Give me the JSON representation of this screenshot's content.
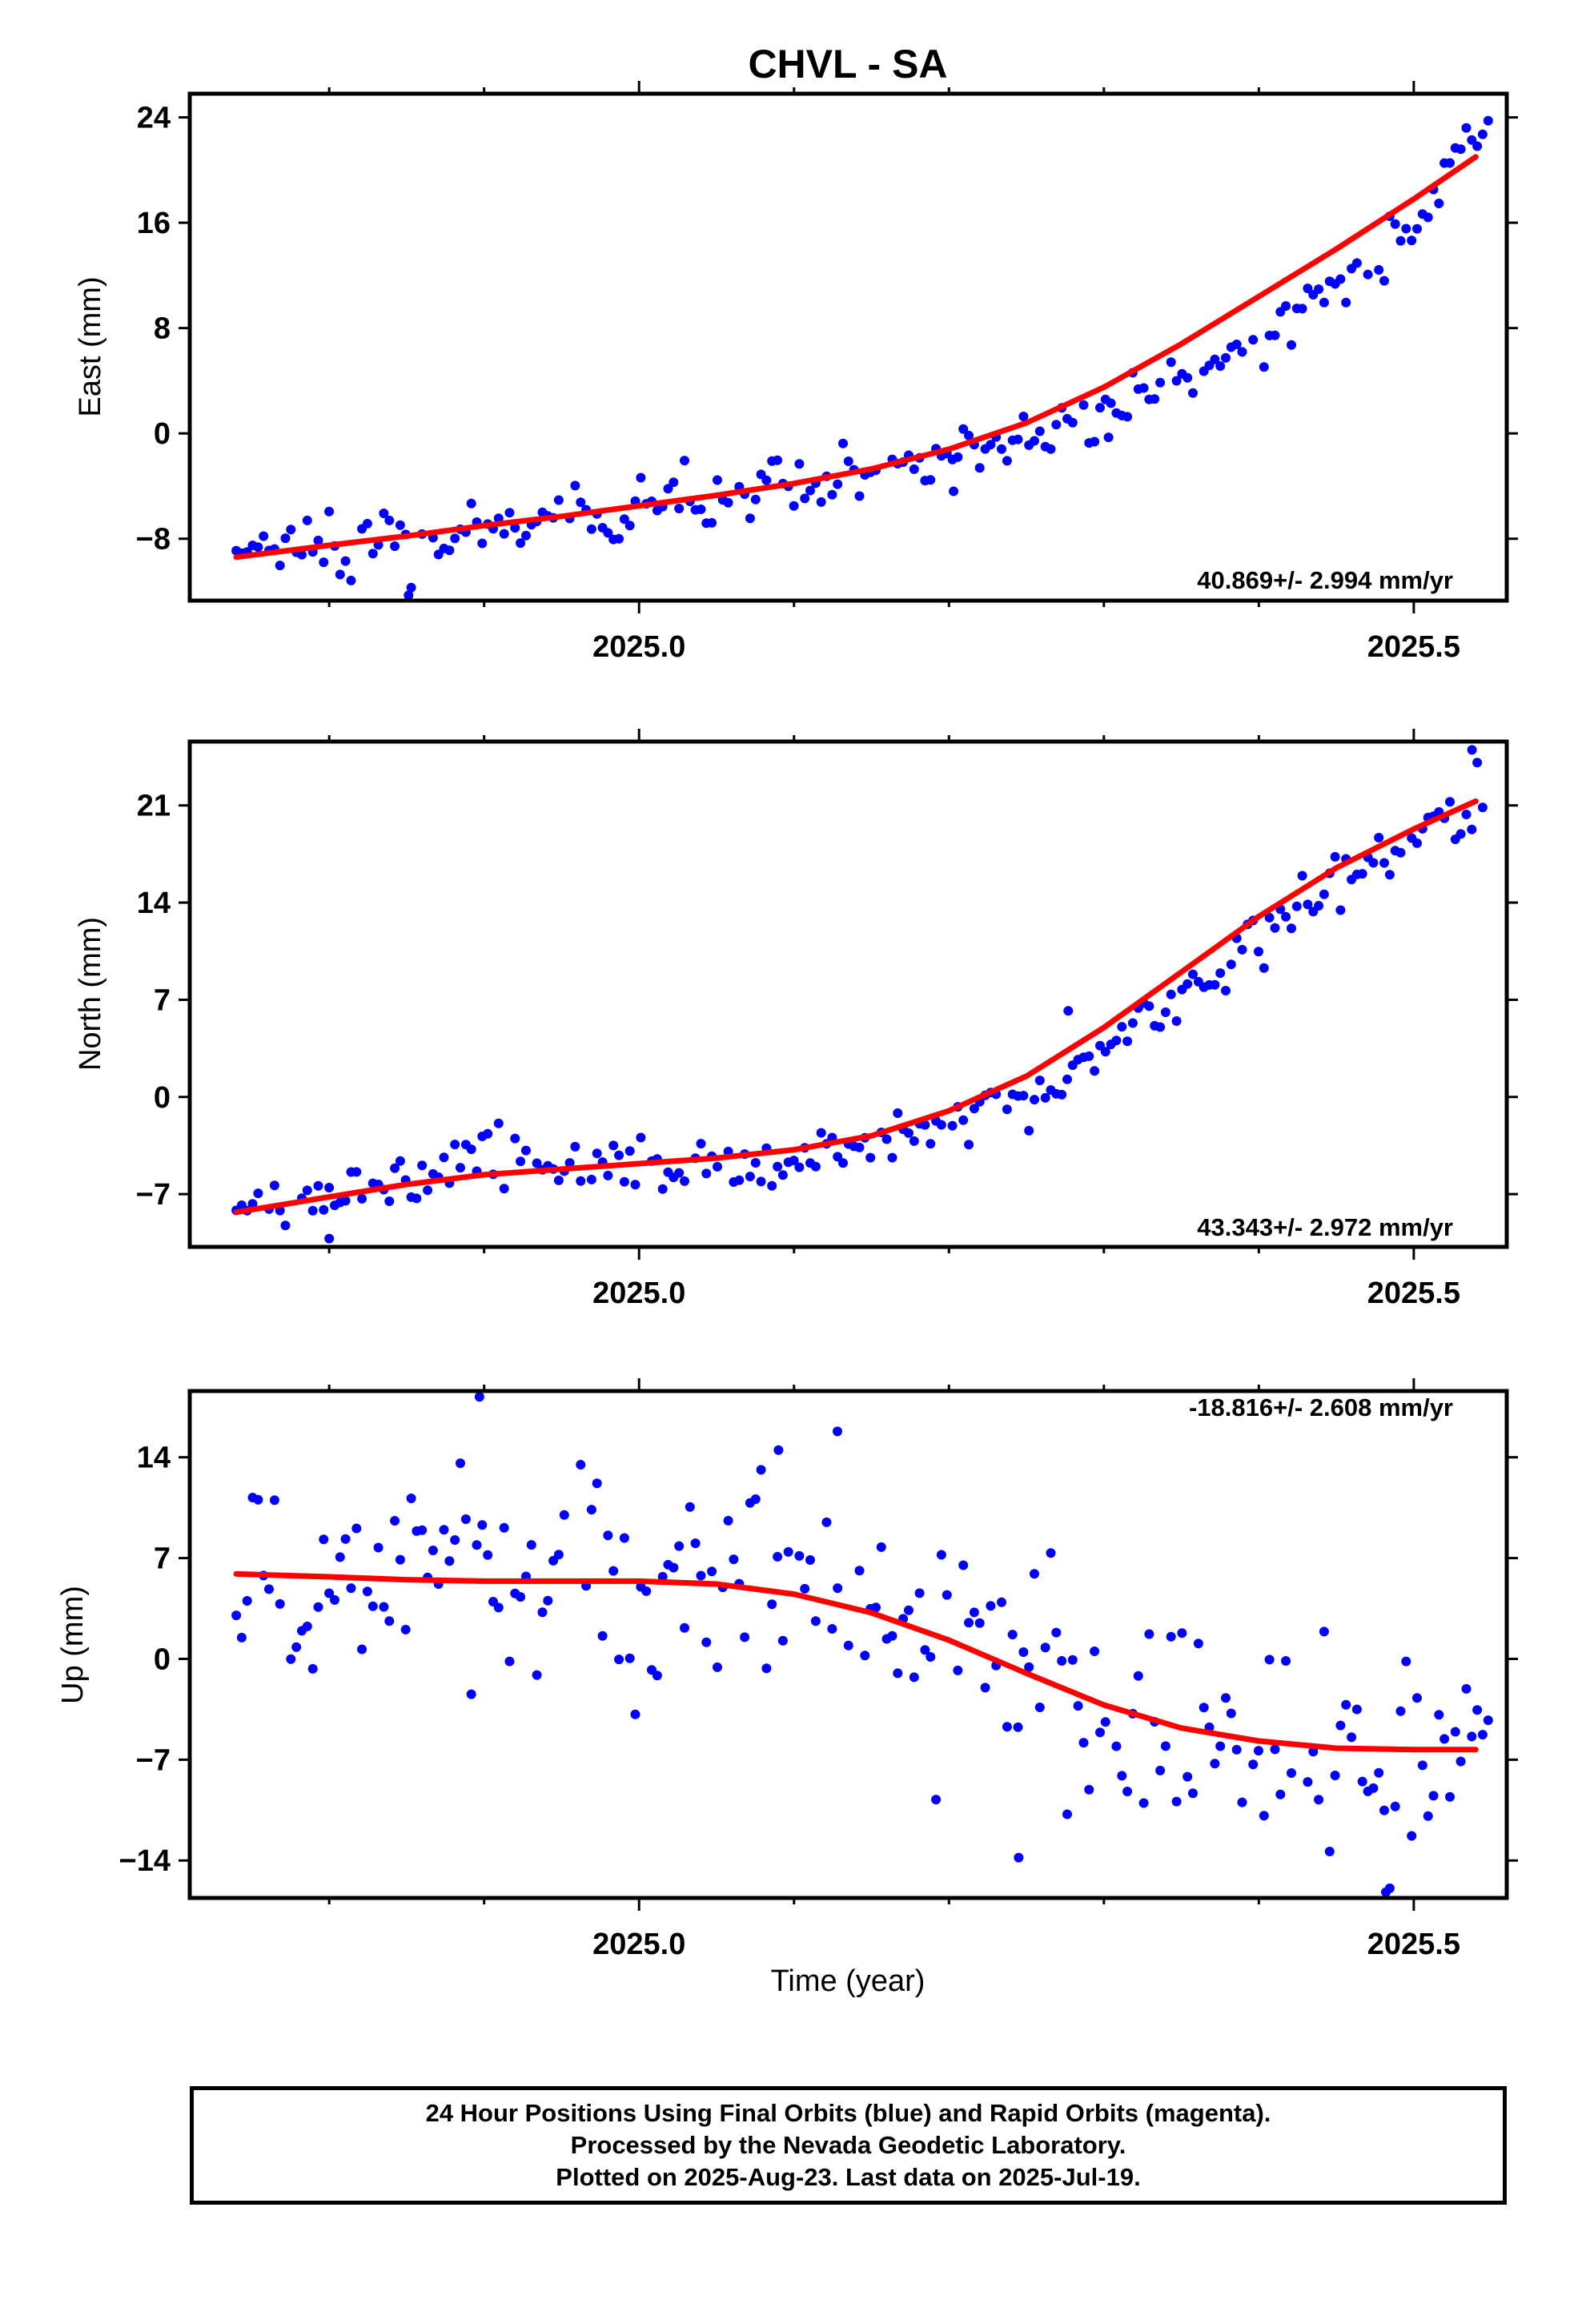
{
  "title": "CHVL - SA",
  "colors": {
    "points": "#0000ff",
    "fit": "#ff0000",
    "axis": "#000000"
  },
  "chart_data": [
    {
      "type": "scatter",
      "panel": "east",
      "ylabel": "East (mm)",
      "xlabel": "",
      "xlim": [
        2024.71,
        2025.56
      ],
      "ylim": [
        -12.7,
        25.8
      ],
      "yticks": [
        24,
        16,
        8,
        0,
        -8
      ],
      "xticks": [
        2025.0,
        2025.5
      ],
      "rate_label": "40.869+/- 2.994 mm/yr",
      "rate_position": "bottom-right",
      "point_series": {
        "name": "Final Orbits",
        "color": "#0000ff",
        "anchors": [
          [
            2024.74,
            -8.9
          ],
          [
            2024.8,
            -8.3
          ],
          [
            2024.85,
            -7.8
          ],
          [
            2024.9,
            -7.3
          ],
          [
            2024.95,
            -6.8
          ],
          [
            2025.0,
            -6.0
          ],
          [
            2025.05,
            -5.2
          ],
          [
            2025.1,
            -4.4
          ],
          [
            2025.15,
            -3.3
          ],
          [
            2025.2,
            -1.8
          ],
          [
            2025.25,
            -0.3
          ],
          [
            2025.3,
            1.5
          ],
          [
            2025.35,
            4.0
          ],
          [
            2025.4,
            7.3
          ],
          [
            2025.45,
            11.8
          ],
          [
            2025.5,
            15.5
          ],
          [
            2025.55,
            24.0
          ]
        ],
        "noise": 1.2,
        "outliers": [
          [
            2024.8512,
            -12.3
          ],
          [
            2025.303,
            -0.3
          ],
          [
            2025.203,
            -4.4
          ]
        ]
      },
      "fit": {
        "name": "fit",
        "color": "#ff0000",
        "points": [
          [
            2024.74,
            -9.4
          ],
          [
            2024.8,
            -8.5
          ],
          [
            2024.85,
            -7.8
          ],
          [
            2024.9,
            -7.0
          ],
          [
            2024.95,
            -6.3
          ],
          [
            2025.0,
            -5.5
          ],
          [
            2025.05,
            -4.7
          ],
          [
            2025.1,
            -3.8
          ],
          [
            2025.15,
            -2.7
          ],
          [
            2025.2,
            -1.2
          ],
          [
            2025.25,
            0.8
          ],
          [
            2025.3,
            3.5
          ],
          [
            2025.35,
            6.8
          ],
          [
            2025.4,
            10.4
          ],
          [
            2025.45,
            14.0
          ],
          [
            2025.5,
            17.8
          ],
          [
            2025.54,
            21.0
          ]
        ]
      }
    },
    {
      "type": "scatter",
      "panel": "north",
      "ylabel": "North (mm)",
      "xlabel": "",
      "xlim": [
        2024.71,
        2025.56
      ],
      "ylim": [
        -10.8,
        25.6
      ],
      "yticks": [
        21,
        14,
        7,
        0,
        -7
      ],
      "xticks": [
        2025.0,
        2025.5
      ],
      "rate_label": "43.343+/- 2.972 mm/yr",
      "rate_position": "bottom-right",
      "point_series": {
        "name": "Final Orbits",
        "color": "#0000ff",
        "anchors": [
          [
            2024.74,
            -8.0
          ],
          [
            2024.8,
            -7.0
          ],
          [
            2024.85,
            -5.2
          ],
          [
            2024.9,
            -4.5
          ],
          [
            2024.95,
            -5.0
          ],
          [
            2025.0,
            -5.2
          ],
          [
            2025.05,
            -5.0
          ],
          [
            2025.1,
            -4.7
          ],
          [
            2025.15,
            -3.2
          ],
          [
            2025.2,
            -1.8
          ],
          [
            2025.25,
            0.0
          ],
          [
            2025.3,
            3.0
          ],
          [
            2025.35,
            7.5
          ],
          [
            2025.4,
            11.8
          ],
          [
            2025.45,
            15.8
          ],
          [
            2025.5,
            18.5
          ],
          [
            2025.55,
            22.0
          ]
        ],
        "noise": 1.1,
        "outliers": [
          [
            2024.8,
            -10.2
          ],
          [
            2025.5376,
            25.0
          ],
          [
            2025.277,
            6.2
          ]
        ]
      },
      "fit": {
        "name": "fit",
        "color": "#ff0000",
        "points": [
          [
            2024.74,
            -8.3
          ],
          [
            2024.8,
            -7.2
          ],
          [
            2024.85,
            -6.3
          ],
          [
            2024.9,
            -5.6
          ],
          [
            2024.95,
            -5.2
          ],
          [
            2025.0,
            -4.8
          ],
          [
            2025.05,
            -4.4
          ],
          [
            2025.1,
            -3.8
          ],
          [
            2025.15,
            -2.8
          ],
          [
            2025.2,
            -1.0
          ],
          [
            2025.25,
            1.5
          ],
          [
            2025.3,
            5.0
          ],
          [
            2025.35,
            9.0
          ],
          [
            2025.4,
            13.0
          ],
          [
            2025.45,
            16.5
          ],
          [
            2025.5,
            19.3
          ],
          [
            2025.54,
            21.3
          ]
        ]
      }
    },
    {
      "type": "scatter",
      "panel": "up",
      "ylabel": "Up (mm)",
      "xlabel": "Time (year)",
      "xlim": [
        2024.71,
        2025.56
      ],
      "ylim": [
        -16.6,
        18.6
      ],
      "yticks": [
        14,
        7,
        0,
        -7,
        -14
      ],
      "xticks": [
        2025.0,
        2025.5
      ],
      "rate_label": "-18.816+/- 2.608 mm/yr",
      "rate_position": "top-right",
      "point_series": {
        "name": "Final Orbits",
        "color": "#0000ff",
        "anchors": [
          [
            2024.74,
            5.5
          ],
          [
            2024.8,
            6.0
          ],
          [
            2024.85,
            6.5
          ],
          [
            2024.9,
            5.0
          ],
          [
            2024.95,
            4.5
          ],
          [
            2025.0,
            5.0
          ],
          [
            2025.05,
            5.5
          ],
          [
            2025.1,
            6.5
          ],
          [
            2025.15,
            3.0
          ],
          [
            2025.2,
            1.5
          ],
          [
            2025.25,
            -0.5
          ],
          [
            2025.3,
            -3.5
          ],
          [
            2025.35,
            -5.0
          ],
          [
            2025.4,
            -7.0
          ],
          [
            2025.45,
            -7.5
          ],
          [
            2025.5,
            -7.0
          ],
          [
            2025.55,
            -5.5
          ]
        ],
        "noise": 4.0,
        "outliers": [
          [
            2024.897,
            18.2
          ],
          [
            2025.09,
            14.5
          ],
          [
            2025.128,
            15.8
          ],
          [
            2025.245,
            -13.8
          ],
          [
            2025.482,
            -16.2
          ]
        ]
      },
      "fit": {
        "name": "fit",
        "color": "#ff0000",
        "points": [
          [
            2024.74,
            5.9
          ],
          [
            2024.8,
            5.7
          ],
          [
            2024.85,
            5.5
          ],
          [
            2024.9,
            5.4
          ],
          [
            2024.95,
            5.4
          ],
          [
            2025.0,
            5.4
          ],
          [
            2025.05,
            5.2
          ],
          [
            2025.1,
            4.5
          ],
          [
            2025.15,
            3.2
          ],
          [
            2025.2,
            1.3
          ],
          [
            2025.25,
            -1.0
          ],
          [
            2025.3,
            -3.2
          ],
          [
            2025.35,
            -4.8
          ],
          [
            2025.4,
            -5.7
          ],
          [
            2025.45,
            -6.2
          ],
          [
            2025.5,
            -6.3
          ],
          [
            2025.54,
            -6.3
          ]
        ]
      }
    }
  ],
  "caption": {
    "line1": "24 Hour Positions Using Final Orbits (blue) and Rapid Orbits (magenta).",
    "line2": "Processed by the Nevada Geodetic Laboratory.",
    "line3": "Plotted on 2025-Aug-23. Last data on 2025-Jul-19."
  }
}
